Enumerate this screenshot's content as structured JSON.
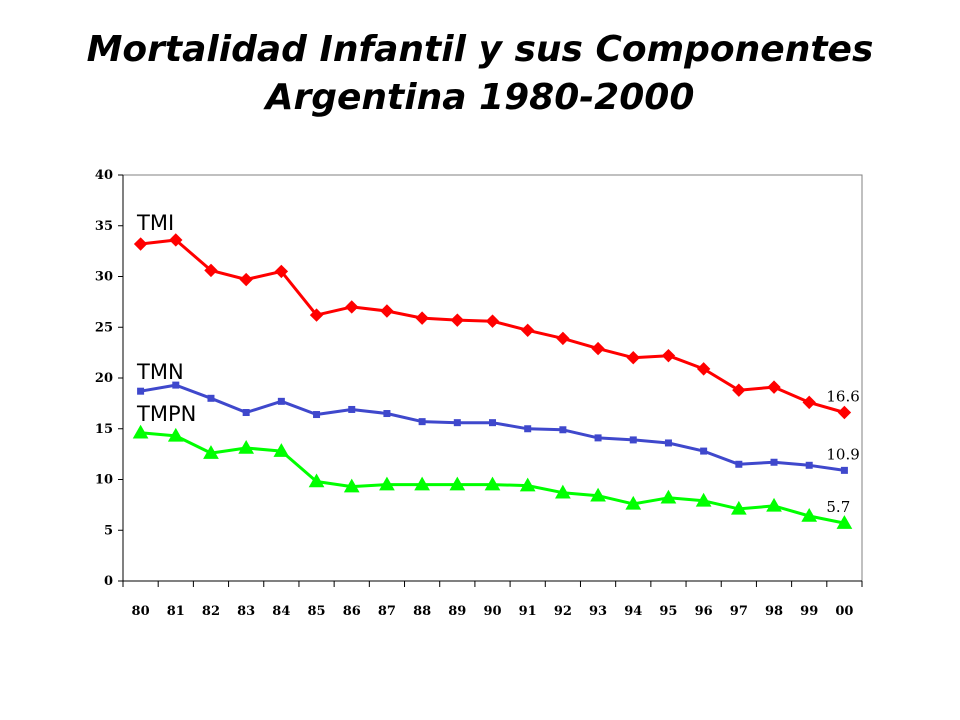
{
  "title": {
    "line1": "Mortalidad Infantil y sus Componentes",
    "line2": "Argentina 1980-2000"
  },
  "chart_data": {
    "type": "line",
    "title": "Mortalidad Infantil y sus Componentes Argentina 1980-2000",
    "xlabel": "",
    "ylabel": "",
    "categories": [
      "80",
      "81",
      "82",
      "83",
      "84",
      "85",
      "86",
      "87",
      "88",
      "89",
      "90",
      "91",
      "92",
      "93",
      "94",
      "95",
      "96",
      "97",
      "98",
      "99",
      "00"
    ],
    "ylim": [
      0,
      40
    ],
    "yticks": [
      "0",
      "5",
      "10",
      "15",
      "20",
      "25",
      "30",
      "35",
      "40"
    ],
    "grid": false,
    "legend": "inline labels at left of series",
    "series": [
      {
        "name": "TMI",
        "color": "#ff0000",
        "marker": "diamond",
        "values": [
          33.2,
          33.6,
          30.6,
          29.7,
          30.5,
          26.2,
          27.0,
          26.6,
          25.9,
          25.7,
          25.6,
          24.7,
          23.9,
          22.9,
          22.0,
          22.2,
          20.9,
          18.8,
          19.1,
          17.6,
          16.6
        ],
        "end_label": "16.6"
      },
      {
        "name": "TMN",
        "color": "#3f48cc",
        "marker": "square",
        "values": [
          18.7,
          19.3,
          18.0,
          16.6,
          17.7,
          16.4,
          16.9,
          16.5,
          15.7,
          15.6,
          15.6,
          15.0,
          14.9,
          14.1,
          13.9,
          13.6,
          12.8,
          11.5,
          11.7,
          11.4,
          10.9
        ],
        "end_label": "10.9"
      },
      {
        "name": "TMPN",
        "color": "#00ff00",
        "marker": "triangle",
        "values": [
          14.6,
          14.3,
          12.6,
          13.1,
          12.8,
          9.8,
          9.3,
          9.5,
          9.5,
          9.5,
          9.5,
          9.4,
          8.7,
          8.4,
          7.6,
          8.2,
          7.9,
          7.1,
          7.4,
          6.4,
          5.7
        ],
        "end_label": "5.7"
      }
    ]
  }
}
